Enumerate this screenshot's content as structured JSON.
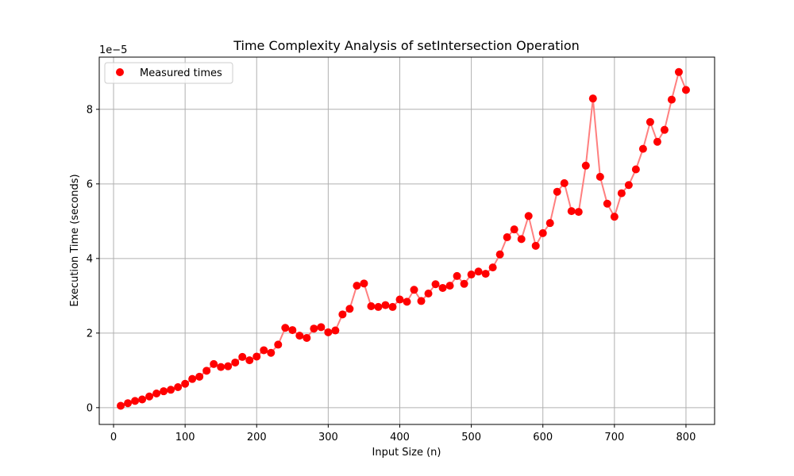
{
  "chart_data": {
    "type": "line",
    "title": "Time Complexity Analysis of setIntersection Operation",
    "xlabel": "Input Size (n)",
    "ylabel": "Execution Time (seconds)",
    "y_offset_label": "1e−5",
    "xlim": [
      -20,
      840
    ],
    "ylim": [
      -0.45,
      9.4
    ],
    "y_scale_factor": 1e-05,
    "xticks": [
      0,
      100,
      200,
      300,
      400,
      500,
      600,
      700,
      800
    ],
    "yticks": [
      0,
      2,
      4,
      6,
      8
    ],
    "grid": true,
    "legend_position": "upper-left",
    "colors": {
      "marker": "#ff0000",
      "line": "#ff7f7f"
    },
    "series": [
      {
        "name": "Measured times",
        "x": [
          10,
          20,
          30,
          40,
          50,
          60,
          70,
          80,
          90,
          100,
          110,
          120,
          130,
          140,
          150,
          160,
          170,
          180,
          190,
          200,
          210,
          220,
          230,
          240,
          250,
          260,
          270,
          280,
          290,
          300,
          310,
          320,
          330,
          340,
          350,
          360,
          370,
          380,
          390,
          400,
          410,
          420,
          430,
          440,
          450,
          460,
          470,
          480,
          490,
          500,
          510,
          520,
          530,
          540,
          550,
          560,
          570,
          580,
          590,
          600,
          610,
          620,
          630,
          640,
          650,
          660,
          670,
          680,
          690,
          700,
          710,
          720,
          730,
          740,
          750,
          760,
          770,
          780,
          790,
          800
        ],
        "y": [
          0.05,
          0.12,
          0.18,
          0.22,
          0.3,
          0.38,
          0.44,
          0.48,
          0.55,
          0.64,
          0.77,
          0.83,
          0.99,
          1.17,
          1.09,
          1.11,
          1.21,
          1.36,
          1.27,
          1.37,
          1.54,
          1.47,
          1.69,
          2.14,
          2.08,
          1.93,
          1.87,
          2.12,
          2.16,
          2.02,
          2.07,
          2.5,
          2.65,
          3.27,
          3.33,
          2.72,
          2.7,
          2.75,
          2.7,
          2.9,
          2.84,
          3.16,
          2.86,
          3.06,
          3.31,
          3.21,
          3.27,
          3.53,
          3.32,
          3.57,
          3.65,
          3.59,
          3.76,
          4.11,
          4.57,
          4.78,
          4.52,
          5.14,
          4.34,
          4.68,
          4.95,
          5.79,
          6.02,
          5.27,
          5.25,
          6.49,
          8.29,
          6.19,
          5.47,
          5.12,
          5.75,
          5.97,
          6.39,
          6.94,
          7.66,
          7.13,
          7.45,
          8.26,
          9.0,
          8.52
        ]
      }
    ]
  }
}
